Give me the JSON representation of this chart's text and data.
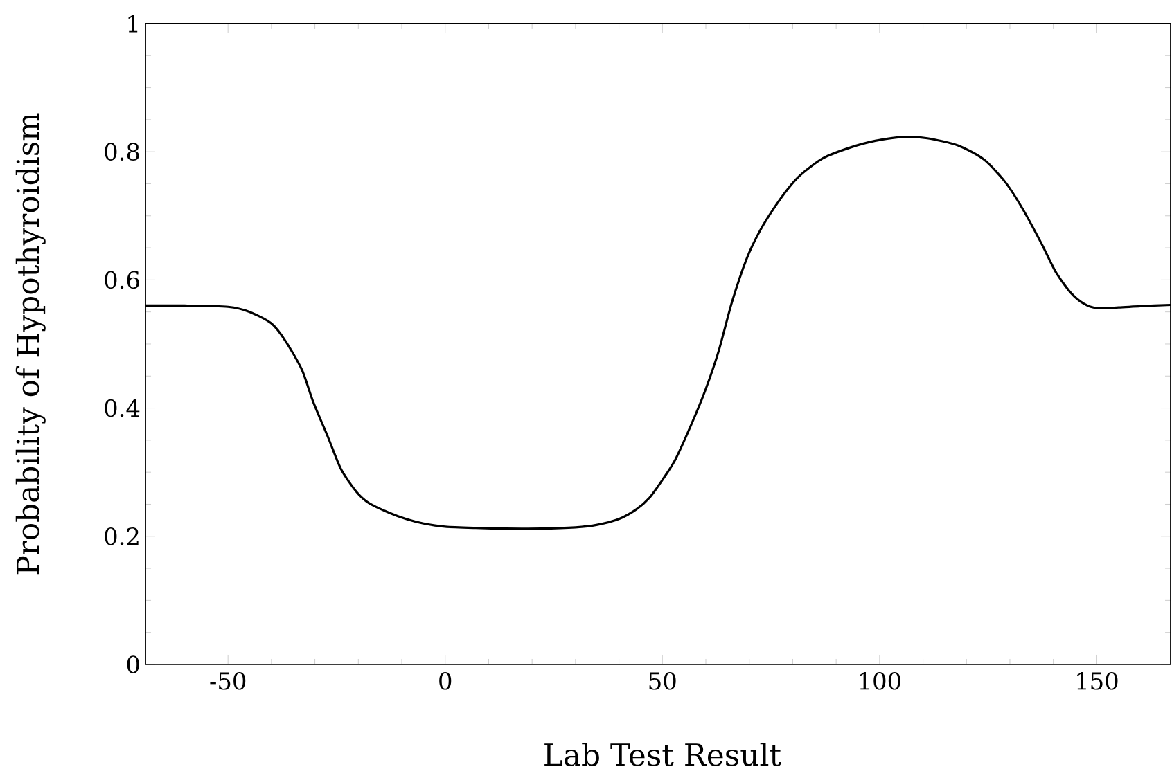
{
  "chart_data": {
    "type": "line",
    "xlabel": "Lab Test Result",
    "ylabel": "Probability of Hypothyroidism",
    "x": [
      -69,
      -60,
      -50,
      -45,
      -40,
      -36.7,
      -33,
      -30.4,
      -27,
      -24,
      -20.5,
      -17.6,
      -13,
      -9,
      -5,
      0,
      7,
      14,
      22,
      30,
      35,
      40,
      44,
      47,
      50,
      53,
      56.7,
      60,
      63,
      66,
      69.4,
      72.5,
      75.8,
      79,
      82,
      87,
      93,
      99,
      105.5,
      111,
      118,
      124,
      129,
      133,
      137.4,
      140.5,
      144,
      147,
      150,
      155,
      160,
      167
    ],
    "values": [
      0.56,
      0.56,
      0.558,
      0.55,
      0.532,
      0.504,
      0.46,
      0.41,
      0.355,
      0.305,
      0.27,
      0.252,
      0.237,
      0.227,
      0.22,
      0.215,
      0.213,
      0.212,
      0.212,
      0.214,
      0.218,
      0.227,
      0.242,
      0.26,
      0.288,
      0.32,
      0.375,
      0.43,
      0.49,
      0.565,
      0.633,
      0.677,
      0.713,
      0.743,
      0.765,
      0.79,
      0.806,
      0.817,
      0.823,
      0.821,
      0.81,
      0.788,
      0.752,
      0.71,
      0.655,
      0.613,
      0.58,
      0.563,
      0.556,
      0.557,
      0.559,
      0.561
    ],
    "color": "#000000",
    "line_style": "solid",
    "xlim": [
      -69,
      167
    ],
    "ylim": [
      0,
      1
    ],
    "xticks": [
      -50,
      0,
      50,
      100,
      150
    ],
    "yticks": [
      0,
      0.2,
      0.4,
      0.6,
      0.8,
      1
    ]
  }
}
